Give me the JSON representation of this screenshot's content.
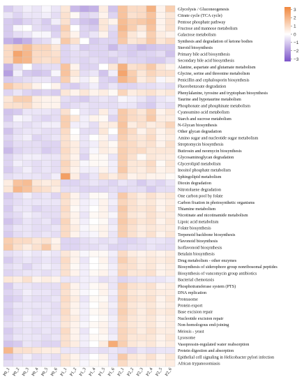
{
  "chart_data": {
    "type": "heatmap",
    "colors": {
      "low": "#7b53c9",
      "mid": "#ffffff",
      "high": "#f0873d"
    },
    "legend": {
      "ticks": [
        3,
        2,
        1,
        0,
        -1,
        -2,
        -3
      ],
      "range": [
        -3.3,
        3.3
      ],
      "placement": "top-right"
    },
    "columns": [
      "P0_1",
      "P0_2",
      "P0_3",
      "P0_4",
      "P0_5",
      "P0_6",
      "P1_1",
      "P1_2",
      "P1_3",
      "P1_4",
      "P1_5",
      "P1_6",
      "P2_1",
      "P2_2",
      "P2_3",
      "P2_4",
      "P2_5",
      "P2_6"
    ],
    "rows": [
      "Glycolysis / Gluconeogenesis",
      "Citrate cycle (TCA cycle)",
      "Pentose phosphate pathway",
      "Fructose and mannose metabolism",
      "Galactose metabolism",
      "Synthesis and degradation of ketone bodies",
      "Steroid biosynthesis",
      "Primary bile acid biosynthesis",
      "Secondary bile acid biosynthesis",
      "Alanine, aspartate and glutamate metabolism",
      "Glycine, serine and threonine metabolism",
      "Penicillin and cephalosporin biosynthesis",
      "Fluorobenzoate degradation",
      "Phenylalanine, tyrosine and tryptophan biosynthesis",
      "Taurine and hypotaurine metabolism",
      "Phosphonate and phosphinate metabolism",
      "Cyanoamino acid metabolism",
      "Starch and sucrose metabolism",
      "N-Glycan biosynthesis",
      "Other glycan degradation",
      "Amino sugar and nucleotide sugar metabolism",
      "Streptomycin biosynthesis",
      "Butirosin and neomycin biosynthesis",
      "Glycosaminoglycan degradation",
      "Glycerolipid metabolism",
      "Inositol phosphate metabolism",
      "Sphingolipid metabolism",
      "Dioxin degradation",
      "Nitrotoluene degradation",
      "One carbon pool by folate",
      "Carbon fixation in photosynthetic organisms",
      "Thiamine metabolism",
      "Nicotinate and nicotinamide metabolism",
      "Lipoic acid metabolism",
      "Folate biosynthesis",
      "Terpenoid backbone biosynthesis",
      "Flavonoid biosynthesis",
      "Isoflavonoid biosynthesis",
      "Betalain biosynthesis",
      "Drug metabolism - other enzymes",
      "Biosynthesis of siderophore group nonribosomal peptides",
      "Biosynthesis of vancomycin group antibiotics",
      "Bacterial chemotaxis",
      "Phosphotransferase system (PTS)",
      "DNA replication",
      "Proteasome",
      "Protein export",
      "Base excision repair",
      "Nucleotide excision repair",
      "Non-homologous end-joining",
      "Meiosis - yeast",
      "Lysosome",
      "Vasopressin-regulated water reabsorption",
      "Protein digestion and absorption",
      "Epithelial cell signaling in Helicobacter pylori infection",
      "African trypanosomiasis"
    ],
    "values": [
      [
        -0.6,
        -0.4,
        -0.2,
        -0.3,
        -0.1,
        -0.3,
        0.4,
        -0.8,
        -1.0,
        -0.9,
        0.3,
        -0.7,
        1.0,
        0.6,
        0.6,
        1.3,
        0.2,
        0.8
      ],
      [
        -0.3,
        -0.5,
        -0.3,
        -0.3,
        -0.2,
        -0.4,
        0.5,
        0.1,
        -0.5,
        -0.4,
        0.2,
        -0.5,
        1.0,
        0.5,
        0.6,
        1.0,
        0.2,
        0.4
      ],
      [
        -0.6,
        -0.7,
        -0.5,
        -0.4,
        -0.6,
        -0.2,
        0.5,
        -0.5,
        -0.7,
        -0.8,
        0.4,
        0.2,
        1.1,
        0.8,
        0.9,
        1.1,
        0.2,
        0.5
      ],
      [
        -0.6,
        -0.1,
        0.0,
        -0.4,
        -0.5,
        -0.6,
        0.8,
        0.0,
        -0.5,
        -0.6,
        0.4,
        -0.4,
        1.2,
        0.8,
        0.4,
        1.0,
        0.2,
        0.5
      ],
      [
        -0.6,
        -0.4,
        -0.3,
        -0.1,
        -0.1,
        -0.5,
        0.6,
        0.2,
        -0.5,
        -0.3,
        0.2,
        -0.5,
        1.0,
        0.4,
        0.2,
        0.8,
        0.3,
        0.2
      ],
      [
        -0.9,
        -1.1,
        -0.9,
        -0.5,
        -0.4,
        -0.1,
        0.9,
        0.5,
        0.0,
        -0.6,
        -0.5,
        -0.5,
        0.9,
        0.4,
        0.5,
        0.9,
        0.4,
        0.6
      ],
      [
        0.6,
        0.8,
        1.1,
        0.7,
        0.7,
        0.4,
        -0.5,
        -0.3,
        -0.6,
        -0.5,
        -0.5,
        -0.8,
        -0.5,
        -0.6,
        -0.8,
        -0.7,
        -0.6,
        -0.6
      ],
      [
        0.6,
        1.5,
        1.2,
        0.6,
        0.6,
        0.5,
        -0.5,
        -0.4,
        -0.4,
        -0.5,
        -0.5,
        -0.4,
        -0.5,
        -0.6,
        -0.5,
        -0.5,
        -0.4,
        -0.7
      ],
      [
        0.6,
        1.3,
        1.2,
        0.6,
        0.5,
        0.6,
        -0.5,
        -0.4,
        -0.5,
        -0.4,
        -0.5,
        -0.6,
        -0.4,
        -0.5,
        -0.5,
        -0.6,
        -0.6,
        -0.4
      ],
      [
        -0.9,
        -0.4,
        0.0,
        -0.5,
        -0.4,
        -0.4,
        1.0,
        0.2,
        -0.5,
        -0.5,
        0.0,
        0.4,
        1.3,
        0.5,
        0.6,
        0.9,
        0.4,
        0.2
      ],
      [
        -1.1,
        -0.2,
        -0.6,
        -0.7,
        -0.6,
        -0.1,
        1.0,
        0.4,
        -0.4,
        -0.3,
        -0.7,
        -0.2,
        1.5,
        0.8,
        0.4,
        0.7,
        0.5,
        0.5
      ],
      [
        -0.6,
        -0.5,
        -0.4,
        -0.3,
        -0.3,
        -0.5,
        0.8,
        0.2,
        -0.2,
        0.1,
        -0.5,
        -0.6,
        1.2,
        0.9,
        0.3,
        0.5,
        -0.1,
        0.2
      ],
      [
        0.9,
        0.6,
        0.5,
        0.2,
        0.0,
        0.2,
        -0.5,
        -0.6,
        -0.4,
        -0.2,
        -0.5,
        -0.3,
        -0.5,
        -0.5,
        -0.4,
        -0.4,
        -0.3,
        -0.4
      ],
      [
        -0.5,
        -0.3,
        -0.5,
        -0.6,
        -0.5,
        -0.6,
        0.4,
        0.2,
        0.4,
        0.2,
        0.3,
        0.1,
        0.7,
        0.3,
        0.4,
        0.5,
        0.3,
        0.4
      ],
      [
        0.4,
        0.8,
        0.8,
        0.3,
        0.2,
        0.2,
        -0.4,
        -0.5,
        -0.6,
        -0.4,
        -0.3,
        -0.4,
        -0.1,
        -0.2,
        -0.3,
        -0.5,
        -0.3,
        -0.2
      ],
      [
        0.5,
        0.5,
        0.6,
        0.3,
        0.2,
        0.2,
        -0.5,
        -0.4,
        -0.3,
        -0.4,
        -0.4,
        -0.4,
        -0.3,
        -0.3,
        -0.5,
        -0.6,
        -0.3,
        -0.4
      ],
      [
        -0.7,
        -0.6,
        -0.3,
        -0.3,
        -0.3,
        -0.4,
        0.5,
        0.0,
        -0.3,
        -0.4,
        0.3,
        -0.3,
        0.9,
        0.6,
        0.4,
        0.8,
        0.2,
        0.4
      ],
      [
        -0.6,
        -0.1,
        -0.2,
        -0.4,
        -0.5,
        -0.4,
        0.8,
        0.4,
        -0.2,
        0.2,
        0.1,
        -0.5,
        0.9,
        0.6,
        0.5,
        0.9,
        0.3,
        0.3
      ],
      [
        -0.4,
        -0.3,
        -0.4,
        -0.3,
        -0.2,
        -0.2,
        0.8,
        -0.2,
        -0.2,
        -0.4,
        0.3,
        0.3,
        1.0,
        0.3,
        0.5,
        0.3,
        0.4,
        0.7
      ],
      [
        -0.7,
        -0.4,
        -0.3,
        -0.3,
        -0.4,
        -0.4,
        0.6,
        0.0,
        -0.4,
        -0.4,
        0.4,
        0.0,
        0.9,
        0.6,
        0.2,
        0.5,
        0.2,
        0.4
      ],
      [
        -0.5,
        -0.3,
        -0.2,
        -0.5,
        -0.4,
        -0.3,
        0.5,
        0.1,
        -0.3,
        0.0,
        0.2,
        -0.3,
        0.8,
        0.5,
        0.4,
        0.6,
        0.2,
        0.3
      ],
      [
        -0.6,
        -0.4,
        -0.4,
        -0.4,
        -0.5,
        -0.5,
        0.5,
        0.3,
        -0.3,
        -0.2,
        0.3,
        0.1,
        0.7,
        0.6,
        0.4,
        0.5,
        0.2,
        0.5
      ],
      [
        -0.8,
        -0.5,
        -0.4,
        -0.4,
        -0.6,
        -0.5,
        0.6,
        0.3,
        -0.4,
        -0.1,
        0.3,
        0.2,
        0.8,
        0.6,
        0.6,
        0.4,
        0.4,
        0.4
      ],
      [
        -0.5,
        -0.3,
        -0.2,
        -0.2,
        -0.3,
        -0.3,
        0.5,
        0.2,
        -0.5,
        0.1,
        0.1,
        -0.3,
        0.8,
        0.5,
        0.1,
        0.4,
        0.3,
        0.3
      ],
      [
        -0.5,
        -0.2,
        -0.3,
        -0.4,
        -0.3,
        -0.4,
        0.7,
        0.3,
        -0.1,
        0.1,
        0.1,
        -0.2,
        0.8,
        0.4,
        0.4,
        0.6,
        0.1,
        0.4
      ],
      [
        -0.6,
        -0.4,
        -0.2,
        -0.4,
        -0.3,
        -0.4,
        0.6,
        0.2,
        -0.2,
        -0.2,
        0.2,
        -0.2,
        0.9,
        0.4,
        0.3,
        0.5,
        0.2,
        0.3
      ],
      [
        -0.4,
        -0.3,
        -0.3,
        -0.3,
        -0.4,
        -0.2,
        1.6,
        0.3,
        -0.5,
        -0.3,
        0.5,
        0.3,
        0.6,
        0.2,
        0.3,
        0.2,
        0.2,
        0.1
      ],
      [
        0.3,
        1.0,
        1.1,
        0.4,
        0.3,
        0.4,
        -0.5,
        -0.5,
        -0.4,
        -0.3,
        -0.4,
        -0.5,
        -0.3,
        -0.4,
        -0.6,
        -0.4,
        -0.5,
        -0.3
      ],
      [
        0.4,
        1.2,
        1.0,
        0.6,
        0.5,
        0.3,
        -0.4,
        -0.4,
        -0.5,
        -0.5,
        -0.5,
        -0.4,
        -0.5,
        -0.4,
        -0.4,
        -0.6,
        -0.4,
        -0.4
      ],
      [
        -0.6,
        -0.4,
        -0.2,
        -0.4,
        -0.3,
        -0.5,
        0.6,
        0.2,
        -0.3,
        0.1,
        0.1,
        -0.3,
        0.9,
        0.5,
        0.3,
        0.5,
        0.3,
        0.4
      ],
      [
        -0.5,
        -0.4,
        -0.3,
        -0.3,
        -0.3,
        -0.3,
        0.5,
        0.2,
        -0.2,
        -0.1,
        0.2,
        -0.2,
        0.7,
        0.5,
        0.3,
        0.4,
        0.2,
        0.3
      ],
      [
        -0.6,
        -0.3,
        -0.3,
        -0.5,
        -0.4,
        -0.4,
        0.6,
        0.1,
        -0.2,
        0.0,
        0.2,
        -0.3,
        0.9,
        0.5,
        0.4,
        0.5,
        0.2,
        0.4
      ],
      [
        -0.5,
        -0.4,
        -0.2,
        -0.3,
        -0.4,
        -0.4,
        0.5,
        0.2,
        -0.3,
        0.1,
        0.2,
        -0.1,
        0.8,
        0.4,
        0.3,
        0.5,
        0.3,
        0.3
      ],
      [
        -0.7,
        -0.5,
        -0.3,
        -0.4,
        -0.3,
        -0.5,
        0.7,
        0.2,
        -0.2,
        0.0,
        0.1,
        -0.3,
        0.9,
        0.6,
        0.4,
        0.5,
        0.2,
        0.4
      ],
      [
        -0.5,
        -0.3,
        -0.3,
        -0.4,
        -0.4,
        -0.3,
        0.6,
        0.3,
        -0.1,
        0.1,
        0.2,
        -0.2,
        0.8,
        0.5,
        0.3,
        0.4,
        0.3,
        0.3
      ],
      [
        -0.6,
        -0.4,
        -0.3,
        -0.4,
        -0.3,
        -0.4,
        0.6,
        0.2,
        -0.2,
        -0.1,
        0.2,
        -0.3,
        0.8,
        0.5,
        0.3,
        0.5,
        0.2,
        0.4
      ],
      [
        0.8,
        0.6,
        0.6,
        0.4,
        0.5,
        0.2,
        -0.5,
        -0.5,
        -0.4,
        -0.3,
        -0.4,
        -0.3,
        -0.5,
        -0.5,
        -0.4,
        -0.3,
        -0.3,
        -0.4
      ],
      [
        0.9,
        0.5,
        0.3,
        0.5,
        0.9,
        0.3,
        -0.5,
        -0.5,
        -0.4,
        -0.4,
        -0.3,
        -0.5,
        -0.5,
        -0.4,
        -0.4,
        -0.3,
        -0.4,
        -0.4
      ],
      [
        -0.4,
        -0.3,
        -0.2,
        -0.3,
        -0.2,
        -0.3,
        0.4,
        0.2,
        -0.1,
        0.1,
        0.1,
        -0.2,
        0.6,
        0.3,
        0.2,
        0.3,
        0.2,
        0.3
      ],
      [
        -0.6,
        -0.4,
        -0.3,
        -0.4,
        -0.3,
        -0.4,
        0.6,
        0.2,
        -0.3,
        0.0,
        0.2,
        -0.3,
        0.8,
        0.5,
        0.3,
        0.4,
        0.3,
        0.4
      ],
      [
        -0.4,
        -0.3,
        -0.5,
        -0.3,
        -0.2,
        -0.3,
        0.5,
        0.1,
        -0.2,
        0.0,
        0.1,
        -0.2,
        0.6,
        0.5,
        0.3,
        0.4,
        0.2,
        0.3
      ],
      [
        -0.5,
        -0.4,
        -0.3,
        -0.3,
        -0.4,
        -0.3,
        0.5,
        0.2,
        -0.2,
        0.1,
        0.2,
        -0.2,
        0.7,
        0.4,
        0.4,
        0.5,
        0.2,
        0.3
      ],
      [
        0.4,
        0.3,
        0.5,
        0.2,
        0.3,
        0.2,
        -0.3,
        -0.3,
        -0.2,
        -0.2,
        -0.4,
        -0.3,
        -0.5,
        -0.4,
        -0.3,
        -0.3,
        -0.3,
        -0.2
      ],
      [
        -0.6,
        -0.3,
        -0.3,
        -0.4,
        -0.4,
        -0.4,
        0.6,
        0.2,
        -0.2,
        0.1,
        0.2,
        -0.3,
        0.8,
        0.5,
        0.4,
        0.5,
        0.2,
        0.3
      ],
      [
        -0.5,
        -0.4,
        -0.2,
        -0.3,
        -0.3,
        -0.4,
        0.5,
        0.2,
        -0.1,
        0.0,
        0.2,
        -0.2,
        0.7,
        0.4,
        0.3,
        0.4,
        0.3,
        0.3
      ],
      [
        -0.6,
        -0.5,
        -0.3,
        -0.4,
        -0.4,
        -0.3,
        0.6,
        0.3,
        -0.3,
        0.1,
        0.1,
        -0.3,
        0.8,
        0.5,
        0.4,
        0.5,
        0.2,
        0.4
      ],
      [
        -0.5,
        -0.3,
        -0.3,
        -0.3,
        -0.3,
        -0.4,
        0.5,
        0.2,
        -0.2,
        0.0,
        0.2,
        -0.2,
        0.7,
        0.4,
        0.3,
        0.4,
        0.2,
        0.3
      ],
      [
        -0.6,
        -0.4,
        -0.3,
        -0.4,
        -0.3,
        -0.4,
        0.6,
        0.2,
        -0.2,
        0.1,
        0.2,
        -0.3,
        0.8,
        0.5,
        0.3,
        0.5,
        0.3,
        0.4
      ],
      [
        -0.5,
        -0.4,
        -0.2,
        -0.3,
        -0.4,
        -0.3,
        0.5,
        0.3,
        -0.2,
        0.0,
        0.1,
        -0.2,
        0.7,
        0.4,
        0.3,
        0.4,
        0.2,
        0.3
      ],
      [
        -0.4,
        -0.3,
        -0.3,
        -0.3,
        -0.3,
        -0.3,
        0.4,
        0.2,
        -0.1,
        0.1,
        0.2,
        -0.2,
        0.6,
        0.4,
        0.3,
        0.4,
        0.2,
        0.3
      ],
      [
        -0.6,
        -0.4,
        -0.3,
        -0.4,
        -0.3,
        -0.4,
        0.6,
        0.2,
        -0.3,
        0.0,
        0.2,
        -0.3,
        0.7,
        0.5,
        0.3,
        0.5,
        0.3,
        0.3
      ],
      [
        -0.5,
        -0.3,
        -0.3,
        -0.3,
        -0.4,
        -0.3,
        0.5,
        0.2,
        -0.2,
        0.1,
        0.1,
        -0.2,
        0.7,
        0.4,
        0.4,
        0.4,
        0.2,
        0.4
      ],
      [
        -0.7,
        -0.6,
        -0.3,
        -0.4,
        -0.5,
        -0.5,
        0.5,
        0.3,
        -0.2,
        0.0,
        0.3,
        1.4,
        0.8,
        0.4,
        0.3,
        0.4,
        0.2,
        0.3
      ],
      [
        1.2,
        0.5,
        0.5,
        0.4,
        0.3,
        0.3,
        -0.3,
        -0.3,
        -0.4,
        -0.3,
        -0.4,
        -0.3,
        -0.4,
        -0.5,
        -0.3,
        -0.4,
        -0.3,
        -0.3
      ],
      [
        -0.6,
        -0.4,
        -0.2,
        -0.4,
        -0.3,
        -0.4,
        0.4,
        0.2,
        -0.2,
        0.0,
        0.2,
        -0.3,
        0.9,
        0.4,
        0.3,
        0.5,
        0.2,
        0.4
      ],
      [
        -0.4,
        -0.3,
        -0.3,
        -0.3,
        -0.2,
        -0.3,
        0.4,
        0.2,
        -0.1,
        0.1,
        0.1,
        -0.2,
        0.6,
        0.3,
        0.3,
        0.3,
        0.2,
        0.3
      ]
    ]
  }
}
